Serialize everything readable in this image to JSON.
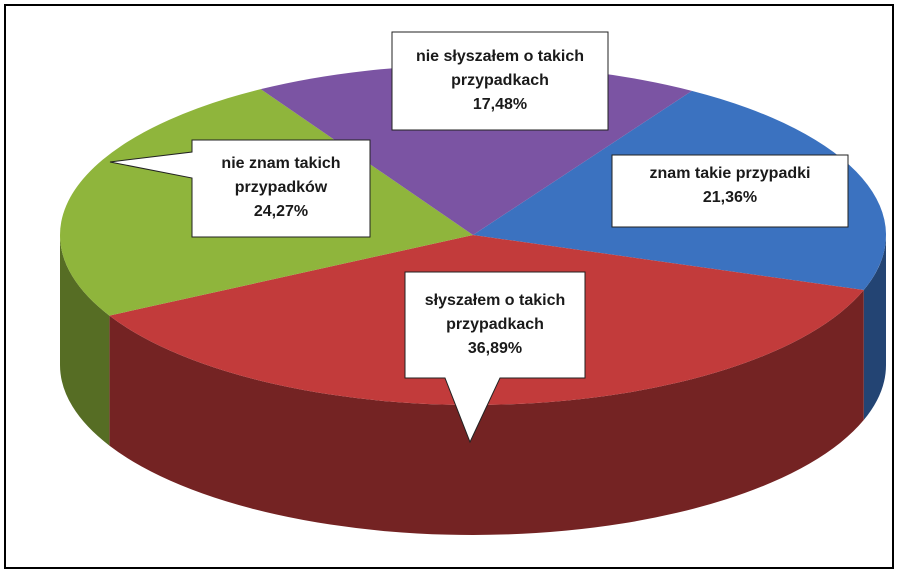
{
  "chart_data": {
    "type": "pie",
    "categories": [
      "znam takie przypadki",
      "słyszałem o takich przypadkach",
      "nie znam takich przypadków",
      "nie słyszałem o takich przypadkach"
    ],
    "values": [
      21.36,
      36.89,
      24.27,
      17.48
    ],
    "value_labels": [
      "21,36%",
      "36,89%",
      "24,27%",
      "17,48%"
    ],
    "colors": [
      "#3b72c0",
      "#c23b3b",
      "#8fb53c",
      "#7b54a3"
    ]
  }
}
